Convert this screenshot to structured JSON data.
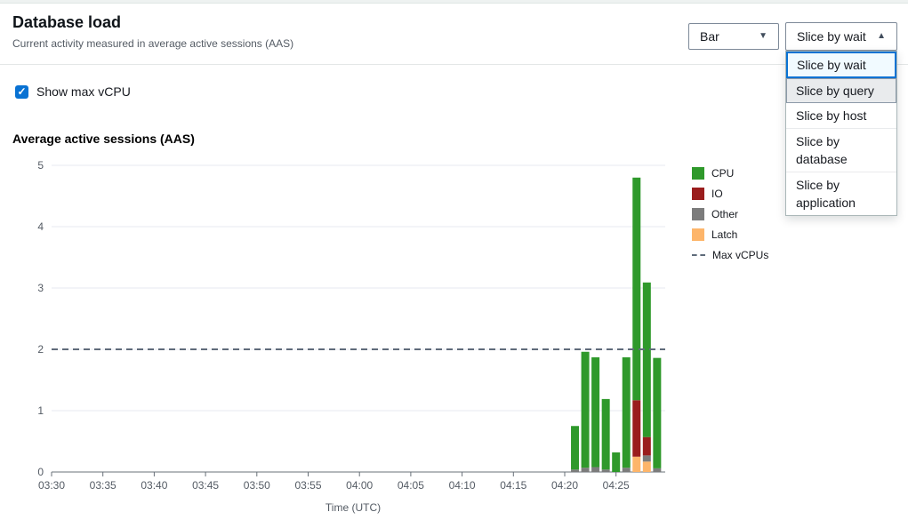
{
  "header": {
    "title": "Database load",
    "subtitle": "Current activity measured in average active sessions (AAS)"
  },
  "controls": {
    "chart_type": {
      "value": "Bar",
      "caret_down_icon": "▼"
    },
    "slice_by": {
      "value": "Slice by wait",
      "caret_up_icon": "▲",
      "options": [
        {
          "label": "Slice by wait",
          "state": "selected"
        },
        {
          "label": "Slice by query",
          "state": "hovered"
        },
        {
          "label": "Slice by host",
          "state": "default"
        },
        {
          "label": "Slice by database",
          "state": "default"
        },
        {
          "label": "Slice by application",
          "state": "default"
        }
      ]
    }
  },
  "checkbox": {
    "label": "Show max vCPU",
    "checked": true,
    "check_icon": "✓"
  },
  "colors": {
    "accent": "#0972d3",
    "selected_item_bg": "#f1faff",
    "hovered_item_bg": "#e9ebed",
    "grid": "#e7eaf0",
    "axis": "#687078",
    "tick_text": "#545b64",
    "max_vcpu_line": "#5f6b7a"
  },
  "chart_data": {
    "type": "bar",
    "stacked": true,
    "title": "Average active sessions (AAS)",
    "xlabel": "Time (UTC)",
    "ylabel": "",
    "ylim": [
      0,
      5
    ],
    "y_ticks": [
      0,
      1,
      2,
      3,
      4,
      5
    ],
    "x_ticks": [
      "03:30",
      "03:35",
      "03:40",
      "03:45",
      "03:50",
      "03:55",
      "04:00",
      "04:05",
      "04:10",
      "04:15",
      "04:20",
      "04:25"
    ],
    "x_tick_interval_minutes": 5,
    "grid": true,
    "legend_position": "right",
    "max_vcpus": 2,
    "stack_order": [
      "latch",
      "other",
      "io",
      "cpu"
    ],
    "series_colors": {
      "cpu": "#2f992b",
      "io": "#9a1d1d",
      "other": "#7c7c7c",
      "latch": "#fdb56a"
    },
    "bars": [
      {
        "time": "04:21",
        "other": 0.04,
        "cpu": 0.71
      },
      {
        "time": "04:22",
        "other": 0.07,
        "cpu": 1.89
      },
      {
        "time": "04:23",
        "other": 0.08,
        "cpu": 1.79
      },
      {
        "time": "04:24",
        "other": 0.04,
        "cpu": 1.15
      },
      {
        "time": "04:25",
        "cpu": 0.32
      },
      {
        "time": "04:26",
        "other": 0.07,
        "cpu": 1.8
      },
      {
        "time": "04:27",
        "latch": 0.25,
        "io": 0.92,
        "cpu": 3.63
      },
      {
        "time": "04:28",
        "latch": 0.17,
        "other": 0.1,
        "io": 0.3,
        "cpu": 2.52
      },
      {
        "time": "04:29",
        "other": 0.06,
        "cpu": 1.8
      }
    ],
    "legend": [
      {
        "label": "CPU",
        "type": "swatch",
        "color": "#2f992b"
      },
      {
        "label": "IO",
        "type": "swatch",
        "color": "#9a1d1d"
      },
      {
        "label": "Other",
        "type": "swatch",
        "color": "#7c7c7c"
      },
      {
        "label": "Latch",
        "type": "swatch",
        "color": "#fdb56a"
      },
      {
        "label": "Max vCPUs",
        "type": "dash",
        "color": "#5f6b7a"
      }
    ]
  }
}
